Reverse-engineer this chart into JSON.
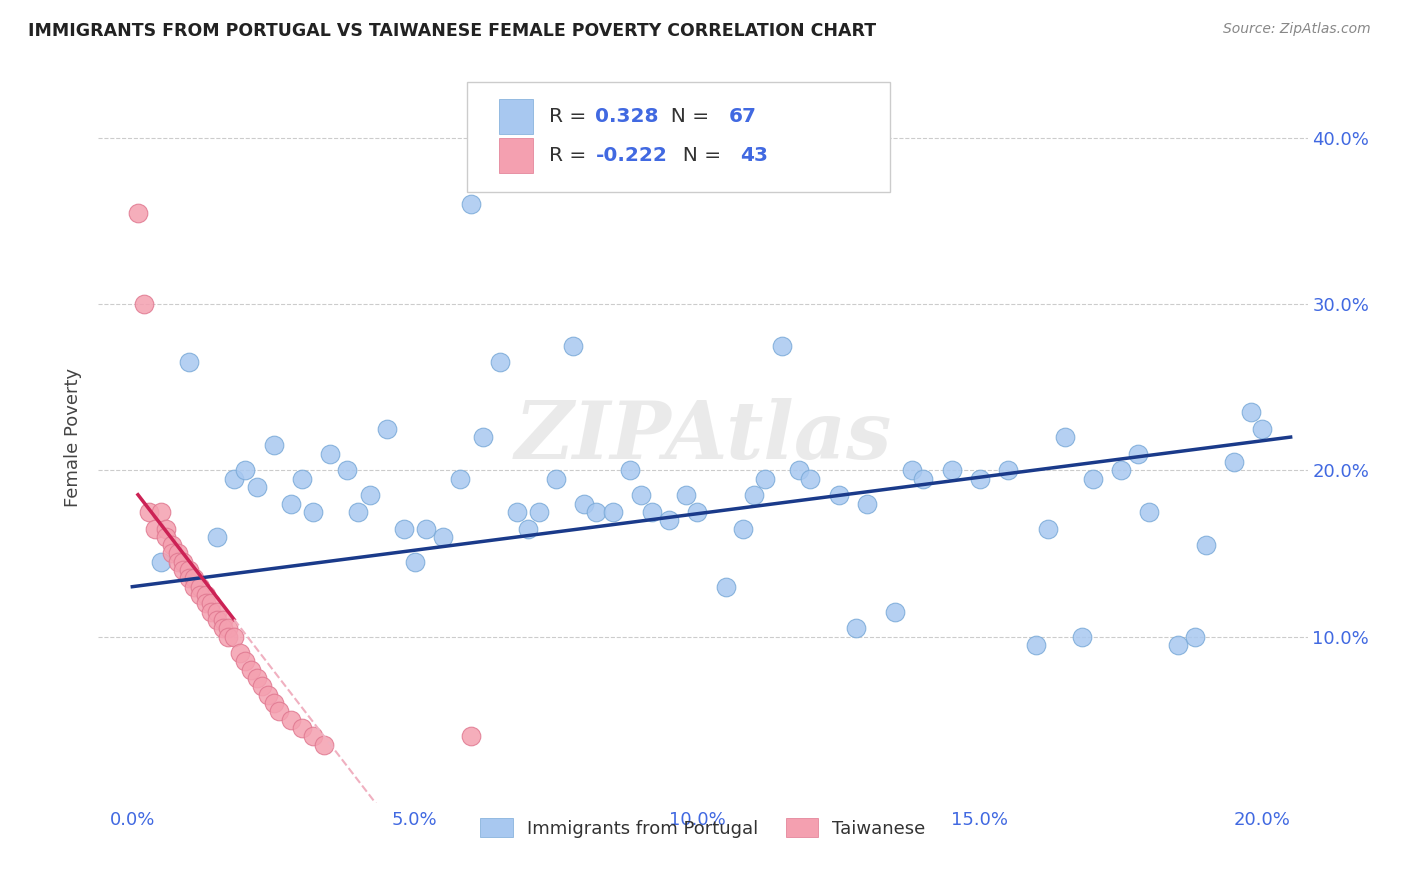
{
  "title": "IMMIGRANTS FROM PORTUGAL VS TAIWANESE FEMALE POVERTY CORRELATION CHART",
  "source": "Source: ZipAtlas.com",
  "tick_color": "#4169E1",
  "ylabel": "Female Poverty",
  "x_tick_labels": [
    "0.0%",
    "5.0%",
    "10.0%",
    "15.0%",
    "20.0%"
  ],
  "x_tick_values": [
    0.0,
    0.05,
    0.1,
    0.15,
    0.2
  ],
  "y_tick_labels": [
    "10.0%",
    "20.0%",
    "30.0%",
    "40.0%"
  ],
  "y_tick_values": [
    0.1,
    0.2,
    0.3,
    0.4
  ],
  "xlim": [
    -0.006,
    0.208
  ],
  "ylim": [
    0.0,
    0.44
  ],
  "blue_R": "0.328",
  "blue_N": "67",
  "pink_R": "-0.222",
  "pink_N": "43",
  "blue_color": "#a8c8f0",
  "pink_color": "#f4a0b0",
  "blue_edge_color": "#7aaad8",
  "pink_edge_color": "#e07890",
  "blue_line_color": "#1a3a8a",
  "pink_solid_color": "#cc2255",
  "pink_dashed_color": "#f0b0c0",
  "watermark": "ZIPAtlas",
  "blue_scatter_x": [
    0.005,
    0.01,
    0.015,
    0.018,
    0.02,
    0.022,
    0.025,
    0.028,
    0.03,
    0.032,
    0.035,
    0.038,
    0.04,
    0.042,
    0.045,
    0.048,
    0.05,
    0.052,
    0.055,
    0.058,
    0.06,
    0.062,
    0.065,
    0.068,
    0.07,
    0.072,
    0.075,
    0.078,
    0.08,
    0.082,
    0.085,
    0.088,
    0.09,
    0.092,
    0.095,
    0.098,
    0.1,
    0.105,
    0.108,
    0.11,
    0.112,
    0.115,
    0.118,
    0.12,
    0.125,
    0.128,
    0.13,
    0.135,
    0.138,
    0.14,
    0.145,
    0.15,
    0.155,
    0.16,
    0.162,
    0.165,
    0.168,
    0.17,
    0.175,
    0.178,
    0.18,
    0.185,
    0.188,
    0.19,
    0.195,
    0.198,
    0.2
  ],
  "blue_scatter_y": [
    0.145,
    0.265,
    0.16,
    0.195,
    0.2,
    0.19,
    0.215,
    0.18,
    0.195,
    0.175,
    0.21,
    0.2,
    0.175,
    0.185,
    0.225,
    0.165,
    0.145,
    0.165,
    0.16,
    0.195,
    0.36,
    0.22,
    0.265,
    0.175,
    0.165,
    0.175,
    0.195,
    0.275,
    0.18,
    0.175,
    0.175,
    0.2,
    0.185,
    0.175,
    0.17,
    0.185,
    0.175,
    0.13,
    0.165,
    0.185,
    0.195,
    0.275,
    0.2,
    0.195,
    0.185,
    0.105,
    0.18,
    0.115,
    0.2,
    0.195,
    0.2,
    0.195,
    0.2,
    0.095,
    0.165,
    0.22,
    0.1,
    0.195,
    0.2,
    0.21,
    0.175,
    0.095,
    0.1,
    0.155,
    0.205,
    0.235,
    0.225
  ],
  "pink_scatter_x": [
    0.001,
    0.002,
    0.003,
    0.004,
    0.005,
    0.006,
    0.006,
    0.007,
    0.007,
    0.008,
    0.008,
    0.009,
    0.009,
    0.01,
    0.01,
    0.011,
    0.011,
    0.012,
    0.012,
    0.013,
    0.013,
    0.014,
    0.014,
    0.015,
    0.015,
    0.016,
    0.016,
    0.017,
    0.017,
    0.018,
    0.019,
    0.02,
    0.021,
    0.022,
    0.023,
    0.024,
    0.025,
    0.026,
    0.028,
    0.03,
    0.032,
    0.034,
    0.06
  ],
  "pink_scatter_y": [
    0.355,
    0.3,
    0.175,
    0.165,
    0.175,
    0.165,
    0.16,
    0.155,
    0.15,
    0.15,
    0.145,
    0.145,
    0.14,
    0.14,
    0.135,
    0.135,
    0.13,
    0.13,
    0.125,
    0.125,
    0.12,
    0.12,
    0.115,
    0.115,
    0.11,
    0.11,
    0.105,
    0.105,
    0.1,
    0.1,
    0.09,
    0.085,
    0.08,
    0.075,
    0.07,
    0.065,
    0.06,
    0.055,
    0.05,
    0.045,
    0.04,
    0.035,
    0.04
  ],
  "legend_label_blue": "Immigrants from Portugal",
  "legend_label_pink": "Taiwanese"
}
